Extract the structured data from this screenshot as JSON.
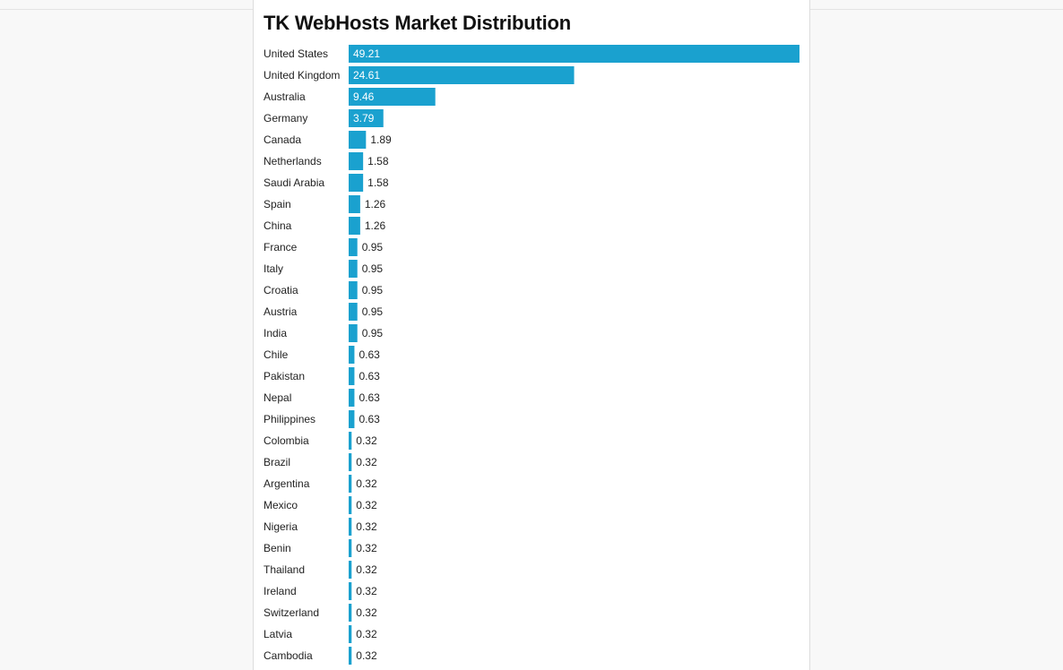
{
  "colors": {
    "bar": "#1aa1cf",
    "value_inside": "#ffffff",
    "value_outside": "#222222"
  },
  "chart_data": {
    "type": "bar",
    "orientation": "horizontal",
    "title": "TK WebHosts Market Distribution",
    "xlabel": "",
    "ylabel": "",
    "xlim": [
      0,
      49.21
    ],
    "grid": false,
    "legend": "none",
    "categories": [
      "United States",
      "United Kingdom",
      "Australia",
      "Germany",
      "Canada",
      "Netherlands",
      "Saudi Arabia",
      "Spain",
      "China",
      "France",
      "Italy",
      "Croatia",
      "Austria",
      "India",
      "Chile",
      "Pakistan",
      "Nepal",
      "Philippines",
      "Colombia",
      "Brazil",
      "Argentina",
      "Mexico",
      "Nigeria",
      "Benin",
      "Thailand",
      "Ireland",
      "Switzerland",
      "Latvia",
      "Cambodia"
    ],
    "values": [
      49.21,
      24.61,
      9.46,
      3.79,
      1.89,
      1.58,
      1.58,
      1.26,
      1.26,
      0.95,
      0.95,
      0.95,
      0.95,
      0.95,
      0.63,
      0.63,
      0.63,
      0.63,
      0.32,
      0.32,
      0.32,
      0.32,
      0.32,
      0.32,
      0.32,
      0.32,
      0.32,
      0.32,
      0.32
    ],
    "value_labels": [
      "49.21",
      "24.61",
      "9.46",
      "3.79",
      "1.89",
      "1.58",
      "1.58",
      "1.26",
      "1.26",
      "0.95",
      "0.95",
      "0.95",
      "0.95",
      "0.95",
      "0.63",
      "0.63",
      "0.63",
      "0.63",
      "0.32",
      "0.32",
      "0.32",
      "0.32",
      "0.32",
      "0.32",
      "0.32",
      "0.32",
      "0.32",
      "0.32",
      "0.32"
    ]
  }
}
